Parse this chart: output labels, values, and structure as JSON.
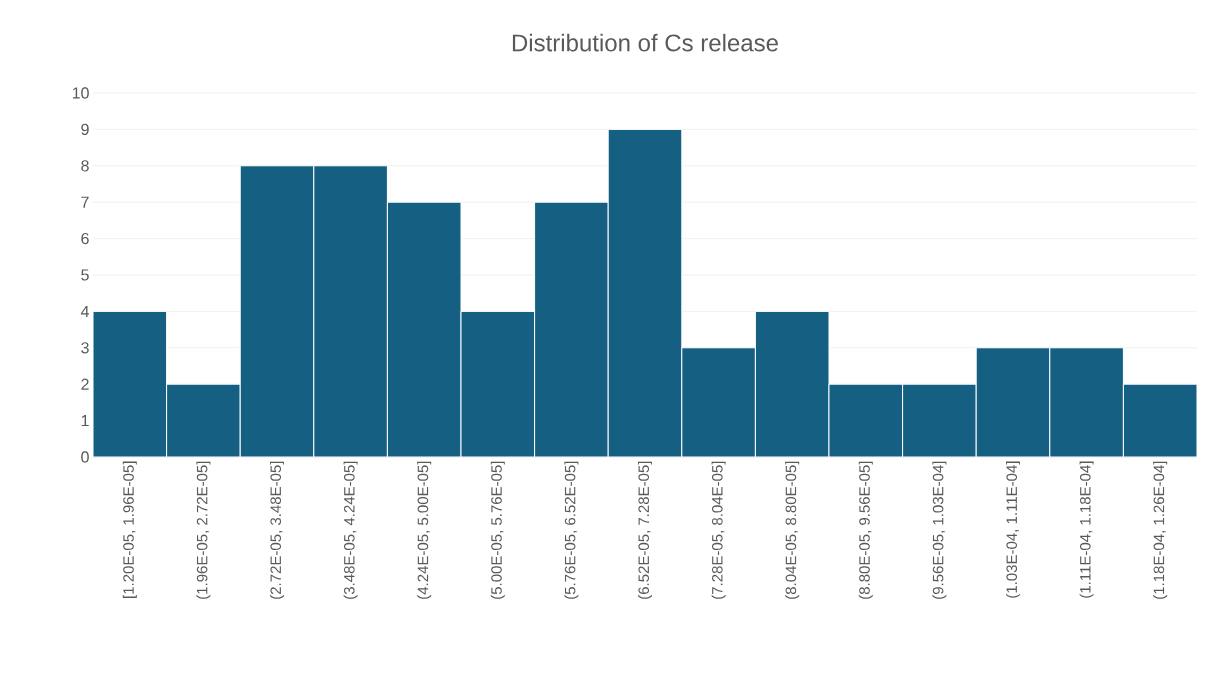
{
  "chart_data": {
    "type": "bar",
    "title": "Distribution of Cs release",
    "categories": [
      "[1.20E-05, 1.96E-05]",
      "(1.96E-05, 2.72E-05]",
      "(2.72E-05, 3.48E-05]",
      "(3.48E-05, 4.24E-05]",
      "(4.24E-05, 5.00E-05]",
      "(5.00E-05, 5.76E-05]",
      "(5.76E-05, 6.52E-05]",
      "(6.52E-05, 7.28E-05]",
      "(7.28E-05, 8.04E-05]",
      "(8.04E-05, 8.80E-05]",
      "(8.80E-05, 9.56E-05]",
      "(9.56E-05, 1.03E-04]",
      "(1.03E-04, 1.11E-04]",
      "(1.11E-04, 1.18E-04]",
      "(1.18E-04, 1.26E-04]"
    ],
    "values": [
      4,
      2,
      8,
      8,
      7,
      4,
      7,
      9,
      3,
      4,
      2,
      2,
      3,
      3,
      2
    ],
    "color": "#156082",
    "ylim": [
      0,
      10
    ],
    "yticks": [
      0,
      1,
      2,
      3,
      4,
      5,
      6,
      7,
      8,
      9,
      10
    ],
    "grid": "y"
  }
}
